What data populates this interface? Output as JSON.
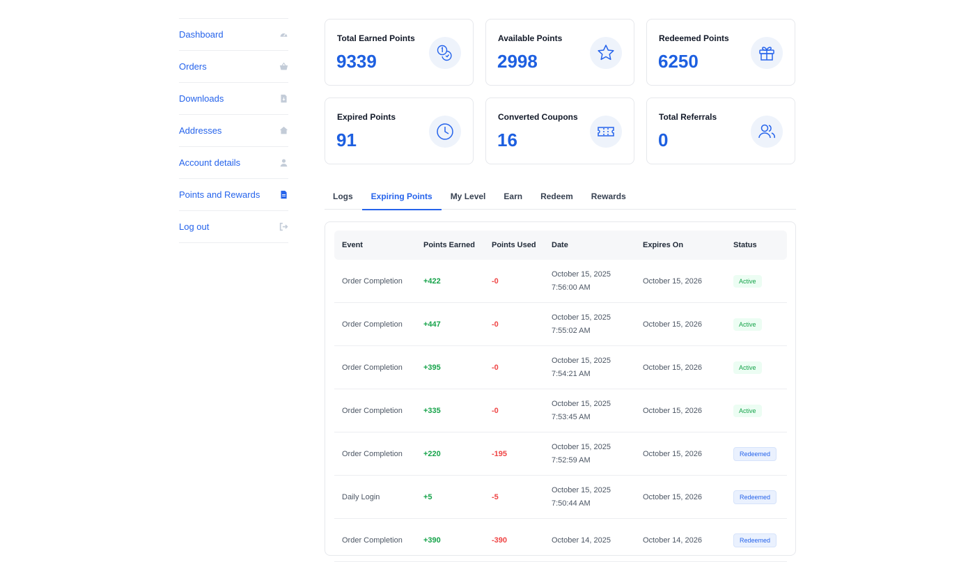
{
  "sidebar": {
    "items": [
      {
        "label": "Dashboard",
        "icon": "dashboard-gauge-icon"
      },
      {
        "label": "Orders",
        "icon": "basket-icon"
      },
      {
        "label": "Downloads",
        "icon": "file-download-icon"
      },
      {
        "label": "Addresses",
        "icon": "home-icon"
      },
      {
        "label": "Account details",
        "icon": "user-icon"
      },
      {
        "label": "Points and Rewards",
        "icon": "document-icon"
      },
      {
        "label": "Log out",
        "icon": "logout-icon"
      }
    ]
  },
  "stats": [
    {
      "label": "Total Earned Points",
      "value": "9339",
      "icon": "coins-icon"
    },
    {
      "label": "Available Points",
      "value": "2998",
      "icon": "star-icon"
    },
    {
      "label": "Redeemed Points",
      "value": "6250",
      "icon": "gift-icon"
    },
    {
      "label": "Expired Points",
      "value": "91",
      "icon": "clock-icon"
    },
    {
      "label": "Converted Coupons",
      "value": "16",
      "icon": "ticket-icon"
    },
    {
      "label": "Total Referrals",
      "value": "0",
      "icon": "users-icon"
    }
  ],
  "tabs": [
    {
      "label": "Logs",
      "active": false
    },
    {
      "label": "Expiring Points",
      "active": true
    },
    {
      "label": "My Level",
      "active": false
    },
    {
      "label": "Earn",
      "active": false
    },
    {
      "label": "Redeem",
      "active": false
    },
    {
      "label": "Rewards",
      "active": false
    }
  ],
  "table": {
    "headers": [
      "Event",
      "Points Earned",
      "Points Used",
      "Date",
      "Expires On",
      "Status"
    ],
    "rows": [
      {
        "event": "Order Completion",
        "earned": "+422",
        "used": "-0",
        "date": "October 15, 2025",
        "time": "7:56:00 AM",
        "expires": "October 15, 2026",
        "status": "Active"
      },
      {
        "event": "Order Completion",
        "earned": "+447",
        "used": "-0",
        "date": "October 15, 2025",
        "time": "7:55:02 AM",
        "expires": "October 15, 2026",
        "status": "Active"
      },
      {
        "event": "Order Completion",
        "earned": "+395",
        "used": "-0",
        "date": "October 15, 2025",
        "time": "7:54:21 AM",
        "expires": "October 15, 2026",
        "status": "Active"
      },
      {
        "event": "Order Completion",
        "earned": "+335",
        "used": "-0",
        "date": "October 15, 2025",
        "time": "7:53:45 AM",
        "expires": "October 15, 2026",
        "status": "Active"
      },
      {
        "event": "Order Completion",
        "earned": "+220",
        "used": "-195",
        "date": "October 15, 2025",
        "time": "7:52:59 AM",
        "expires": "October 15, 2026",
        "status": "Redeemed"
      },
      {
        "event": "Daily Login",
        "earned": "+5",
        "used": "-5",
        "date": "October 15, 2025",
        "time": "7:50:44 AM",
        "expires": "October 15, 2026",
        "status": "Redeemed"
      },
      {
        "event": "Order Completion",
        "earned": "+390",
        "used": "-390",
        "date": "October 14, 2025",
        "time": "",
        "expires": "October 14, 2026",
        "status": "Redeemed"
      }
    ]
  },
  "colors": {
    "accent": "#2563eb",
    "positive": "#16a34a",
    "negative": "#ef4444"
  }
}
